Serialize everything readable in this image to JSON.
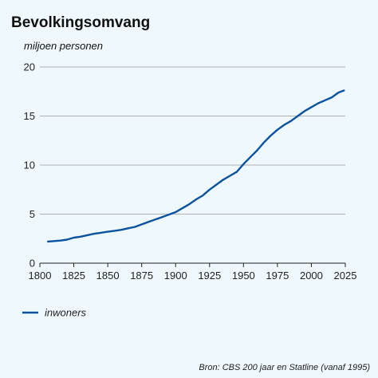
{
  "chart_data": {
    "type": "line",
    "title": "Bevolkingsomvang",
    "ylabel": "miljoen personen",
    "xlabel": "",
    "xlim": [
      1800,
      2025
    ],
    "ylim": [
      0,
      20
    ],
    "xticks": [
      1800,
      1825,
      1850,
      1875,
      1900,
      1925,
      1950,
      1975,
      2000,
      2025
    ],
    "yticks": [
      0,
      5,
      10,
      15,
      20
    ],
    "grid": "horizontal",
    "legend_position": "bottom-left",
    "series": [
      {
        "name": "inwoners",
        "color": "#0b539e",
        "x": [
          1806,
          1815,
          1820,
          1825,
          1830,
          1835,
          1840,
          1845,
          1850,
          1855,
          1860,
          1865,
          1870,
          1875,
          1880,
          1885,
          1890,
          1895,
          1900,
          1905,
          1910,
          1915,
          1920,
          1925,
          1930,
          1935,
          1940,
          1945,
          1950,
          1955,
          1960,
          1965,
          1970,
          1975,
          1980,
          1985,
          1990,
          1995,
          2000,
          2005,
          2010,
          2015,
          2020,
          2024
        ],
        "values": [
          2.2,
          2.3,
          2.4,
          2.6,
          2.7,
          2.85,
          3.0,
          3.1,
          3.2,
          3.3,
          3.4,
          3.55,
          3.7,
          3.95,
          4.2,
          4.45,
          4.7,
          4.95,
          5.2,
          5.6,
          6.0,
          6.5,
          6.9,
          7.5,
          8.0,
          8.5,
          8.9,
          9.3,
          10.1,
          10.8,
          11.5,
          12.3,
          13.0,
          13.6,
          14.1,
          14.5,
          15.0,
          15.5,
          15.9,
          16.3,
          16.6,
          16.9,
          17.4,
          17.6
        ]
      }
    ],
    "source": "Bron: CBS 200 jaar en Statline (vanaf 1995)"
  }
}
